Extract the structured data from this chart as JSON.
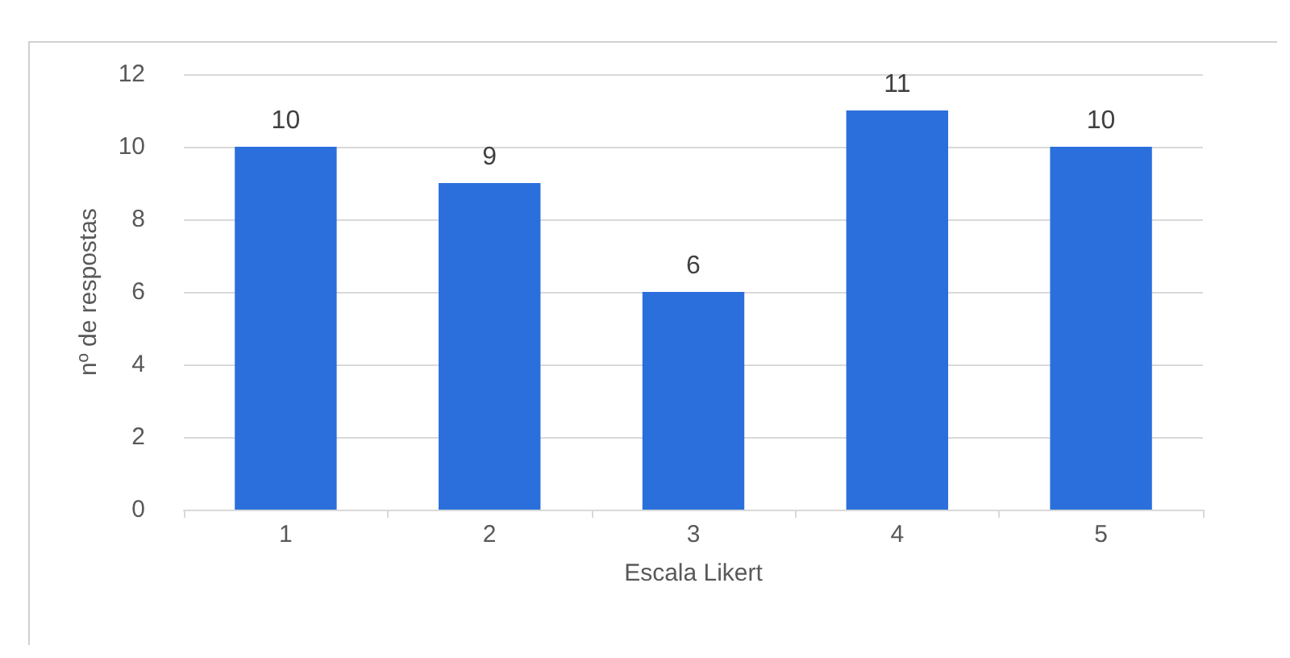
{
  "chart_data": {
    "type": "bar",
    "xlabel": "Escala Likert",
    "ylabel": "nº de respostas",
    "categories": [
      "1",
      "2",
      "3",
      "4",
      "5"
    ],
    "values": [
      10,
      9,
      6,
      11,
      10
    ],
    "color": "#2b6fdc",
    "ylim": [
      0,
      12
    ],
    "yticks": [
      0,
      2,
      4,
      6,
      8,
      10,
      12
    ],
    "grid": "y",
    "data_labels": true
  }
}
